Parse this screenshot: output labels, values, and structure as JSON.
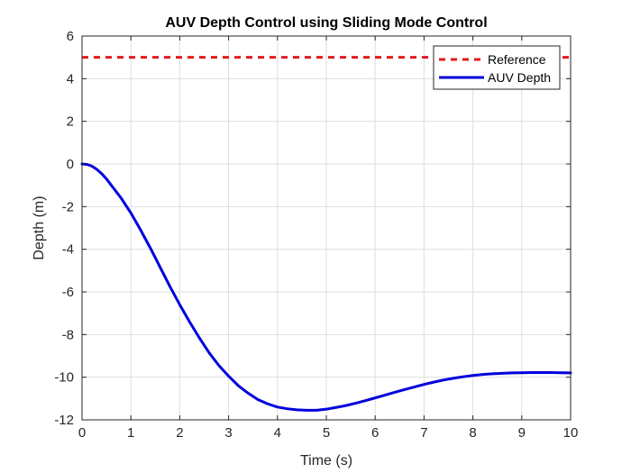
{
  "chart_data": {
    "type": "line",
    "title": "AUV Depth Control using Sliding Mode Control",
    "xlabel": "Time (s)",
    "ylabel": "Depth (m)",
    "xlim": [
      0,
      10
    ],
    "ylim": [
      -12,
      6
    ],
    "xticks": [
      "0",
      "1",
      "2",
      "3",
      "4",
      "5",
      "6",
      "7",
      "8",
      "9",
      "10"
    ],
    "yticks": [
      "-12",
      "-10",
      "-8",
      "-6",
      "-4",
      "-2",
      "0",
      "2",
      "4",
      "6"
    ],
    "grid": true,
    "legend_position": "top-right",
    "series": [
      {
        "name": "Reference",
        "style": "dashed",
        "color": "#e31a1c",
        "x": [
          0,
          10
        ],
        "y": [
          5,
          5
        ]
      },
      {
        "name": "AUV Depth",
        "style": "solid",
        "color": "#0000dd",
        "x": [
          0,
          0.1,
          0.2,
          0.3,
          0.4,
          0.5,
          0.6,
          0.8,
          1.0,
          1.2,
          1.4,
          1.6,
          1.8,
          2.0,
          2.2,
          2.4,
          2.6,
          2.8,
          3.0,
          3.2,
          3.4,
          3.6,
          3.8,
          4.0,
          4.2,
          4.4,
          4.6,
          4.8,
          5.0,
          5.2,
          5.4,
          5.6,
          5.8,
          6.0,
          6.2,
          6.4,
          6.6,
          6.8,
          7.0,
          7.2,
          7.4,
          7.6,
          7.8,
          8.0,
          8.2,
          8.4,
          8.6,
          8.8,
          9.0,
          9.2,
          9.4,
          9.6,
          9.8,
          10.0
        ],
        "y": [
          0,
          -0.02,
          -0.1,
          -0.25,
          -0.45,
          -0.7,
          -1.0,
          -1.6,
          -2.3,
          -3.1,
          -3.95,
          -4.85,
          -5.75,
          -6.6,
          -7.4,
          -8.15,
          -8.85,
          -9.45,
          -9.95,
          -10.4,
          -10.75,
          -11.05,
          -11.25,
          -11.4,
          -11.48,
          -11.53,
          -11.55,
          -11.55,
          -11.5,
          -11.42,
          -11.33,
          -11.22,
          -11.1,
          -10.97,
          -10.84,
          -10.71,
          -10.58,
          -10.46,
          -10.34,
          -10.23,
          -10.13,
          -10.05,
          -9.98,
          -9.92,
          -9.87,
          -9.84,
          -9.82,
          -9.8,
          -9.79,
          -9.78,
          -9.78,
          -9.78,
          -9.79,
          -9.8
        ]
      }
    ]
  }
}
